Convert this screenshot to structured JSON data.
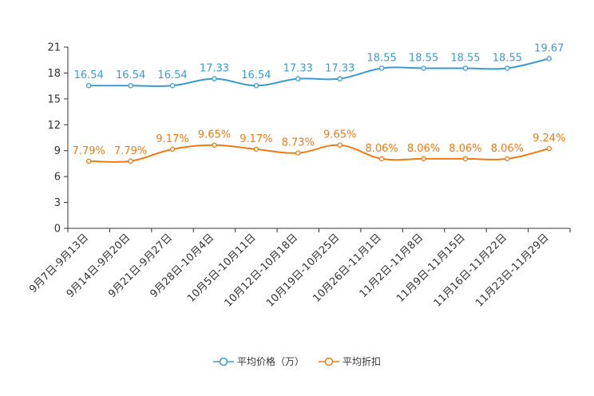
{
  "chart_data": {
    "type": "line",
    "categories": [
      "9月7日-9月13日",
      "9月14日-9月20日",
      "9月21日-9月27日",
      "9月28日-10月4日",
      "10月5日-10月11日",
      "10月12日-10月18日",
      "10月19日-10月25日",
      "10月26日-11月1日",
      "11月2日-11月8日",
      "11月9日-11月15日",
      "11月16日-11月22日",
      "11月23日-11月29日"
    ],
    "ylim": [
      0,
      21
    ],
    "yticks": [
      0,
      3,
      6,
      9,
      12,
      15,
      18,
      21
    ],
    "series": [
      {
        "name": "平均价格（万）",
        "color": "#3a9bd0",
        "values": [
          16.54,
          16.54,
          16.54,
          17.33,
          16.54,
          17.33,
          17.33,
          18.55,
          18.55,
          18.55,
          18.55,
          19.67
        ],
        "labels": [
          "16.54",
          "16.54",
          "16.54",
          "17.33",
          "16.54",
          "17.33",
          "17.33",
          "18.55",
          "18.55",
          "18.55",
          "18.55",
          "19.67"
        ]
      },
      {
        "name": "平均折扣",
        "color": "#f07a12",
        "values": [
          7.79,
          7.79,
          9.17,
          9.65,
          9.17,
          8.73,
          9.65,
          8.06,
          8.06,
          8.06,
          8.06,
          9.24
        ],
        "labels": [
          "7.79%",
          "7.79%",
          "9.17%",
          "9.65%",
          "9.17%",
          "8.73%",
          "9.65%",
          "8.06%",
          "8.06%",
          "8.06%",
          "8.06%",
          "9.24%"
        ]
      }
    ],
    "legend_position": "bottom-center"
  }
}
